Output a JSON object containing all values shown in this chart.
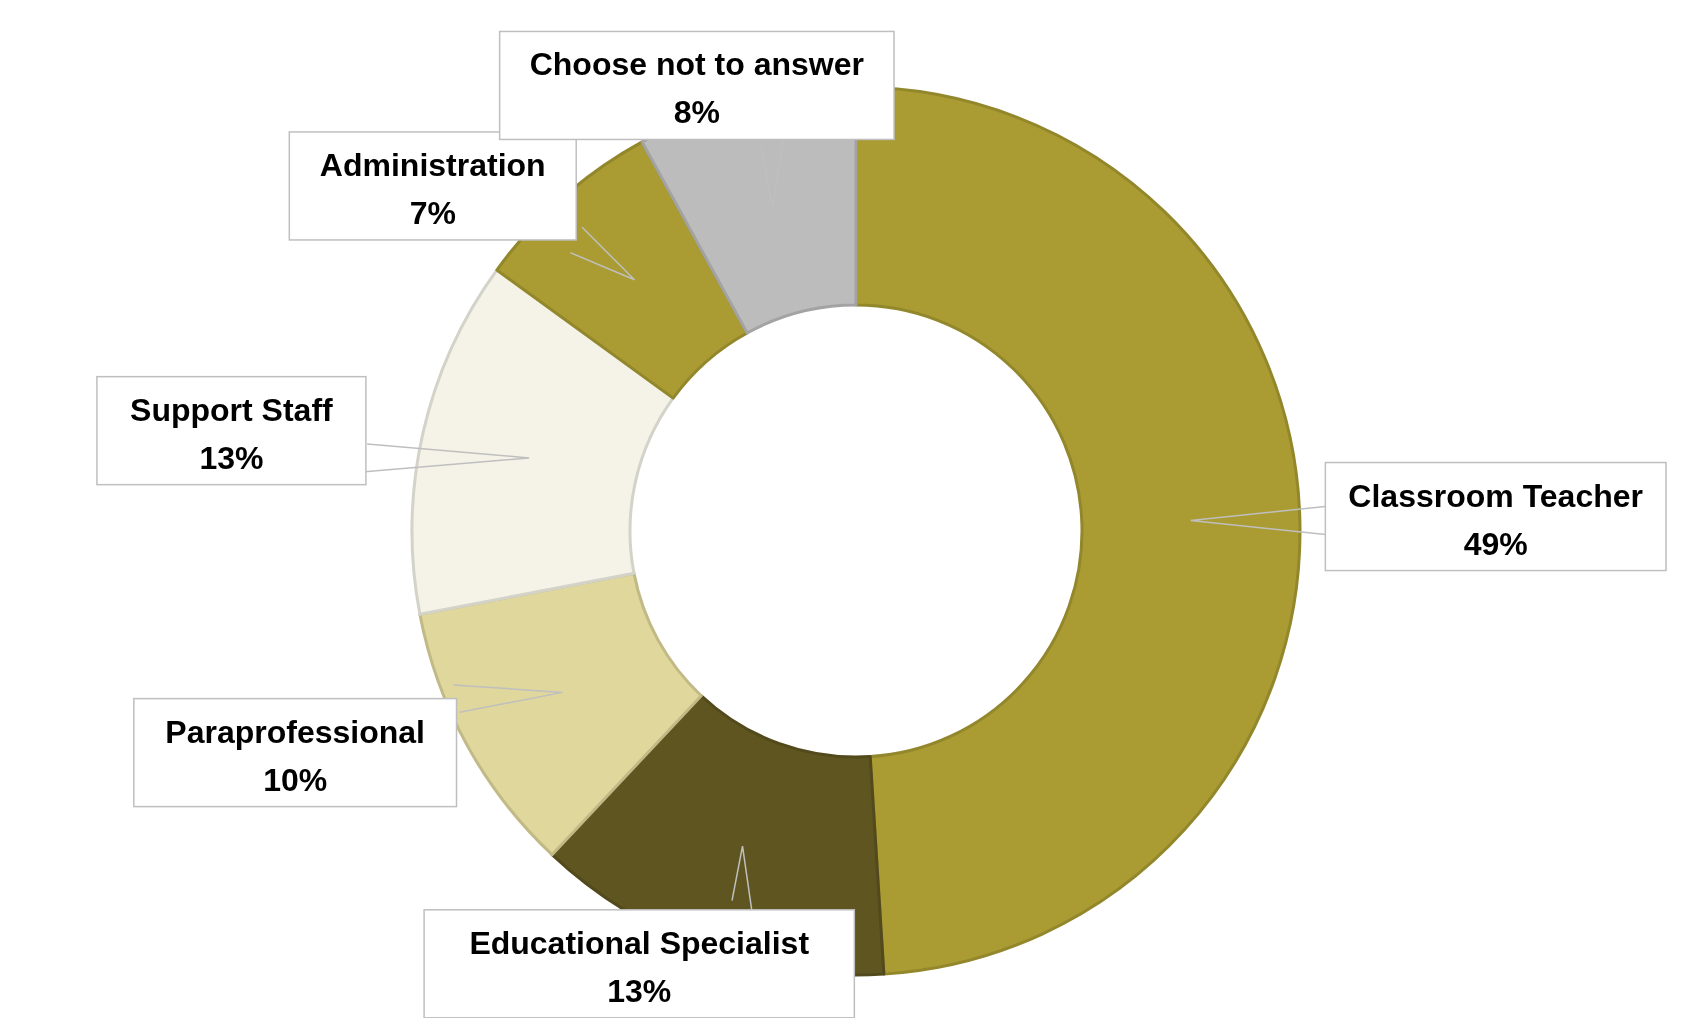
{
  "chart_data": {
    "type": "donut",
    "categories": [
      "Classroom Teacher",
      "Educational Specialist",
      "Paraprofessional",
      "Support Staff",
      "Administration",
      "Choose not to answer"
    ],
    "values": [
      49,
      13,
      10,
      13,
      7,
      8
    ],
    "value_labels": [
      "49%",
      "13%",
      "10%",
      "13%",
      "7%",
      "8%"
    ],
    "colors": [
      "#aa9c33",
      "#5e5520",
      "#dfd79c",
      "#f5f3e8",
      "#aa9c33",
      "#bcbcbc"
    ]
  }
}
